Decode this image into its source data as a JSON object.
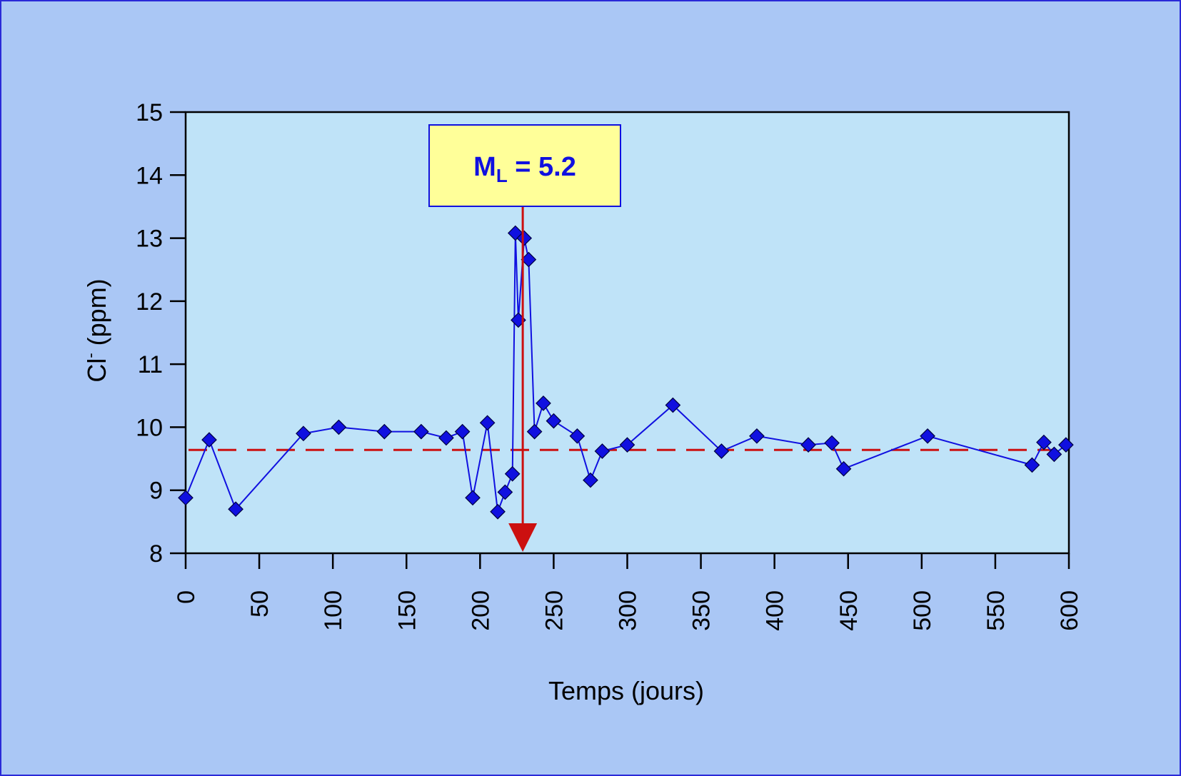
{
  "chart_data": {
    "type": "line",
    "xlabel": "Temps (jours)",
    "ylabel": {
      "main": "Cl",
      "sup": "-",
      "rest": " (ppm)"
    },
    "xlim": [
      0,
      600
    ],
    "ylim": [
      8,
      15
    ],
    "xticks": [
      "0",
      "50",
      "100",
      "150",
      "200",
      "250",
      "300",
      "350",
      "400",
      "450",
      "500",
      "550",
      "600"
    ],
    "yticks": [
      "8",
      "9",
      "10",
      "11",
      "12",
      "13",
      "14",
      "15"
    ],
    "grid": false,
    "reference_line": {
      "y": 9.64,
      "style": "dashed",
      "color": "#cc1010"
    },
    "event_marker": {
      "x": 229,
      "color": "#cc1010"
    },
    "annotation": {
      "label": "M",
      "subscript": "L",
      "value": " = 5.2"
    },
    "series": [
      {
        "color": "#1010e0",
        "marker": "diamond",
        "x": [
          0,
          16,
          34,
          80,
          104,
          135,
          160,
          177,
          188,
          195,
          205,
          212,
          217,
          222,
          224,
          226,
          230,
          233,
          237,
          243,
          250,
          266,
          275,
          283,
          300,
          331,
          364,
          388,
          423,
          439,
          447,
          504,
          575,
          583,
          590,
          598
        ],
        "y": [
          8.88,
          9.8,
          8.7,
          9.9,
          10.0,
          9.93,
          9.93,
          9.83,
          9.93,
          8.88,
          10.07,
          8.66,
          8.97,
          9.26,
          13.08,
          11.7,
          13.0,
          12.66,
          9.93,
          10.38,
          10.1,
          9.86,
          9.16,
          9.62,
          9.72,
          10.35,
          9.62,
          9.86,
          9.72,
          9.75,
          9.34,
          9.86,
          9.4,
          9.76,
          9.57,
          9.72
        ]
      }
    ]
  }
}
